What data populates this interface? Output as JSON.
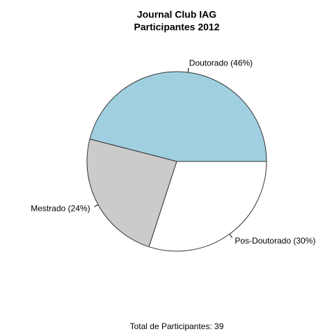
{
  "chart_data": {
    "type": "pie",
    "title": "Journal Club IAG",
    "subtitle": "Participantes 2012",
    "values": [
      46,
      24,
      30
    ],
    "value_labels": [
      "Doutorado (46%)",
      "Mestrado (24%)",
      "Pos-Doutorado (30%)"
    ],
    "colors": [
      "#a0d0e0",
      "#cbcbcb",
      "#ffffff"
    ],
    "xlabel": "Total de Participantes: 39"
  }
}
